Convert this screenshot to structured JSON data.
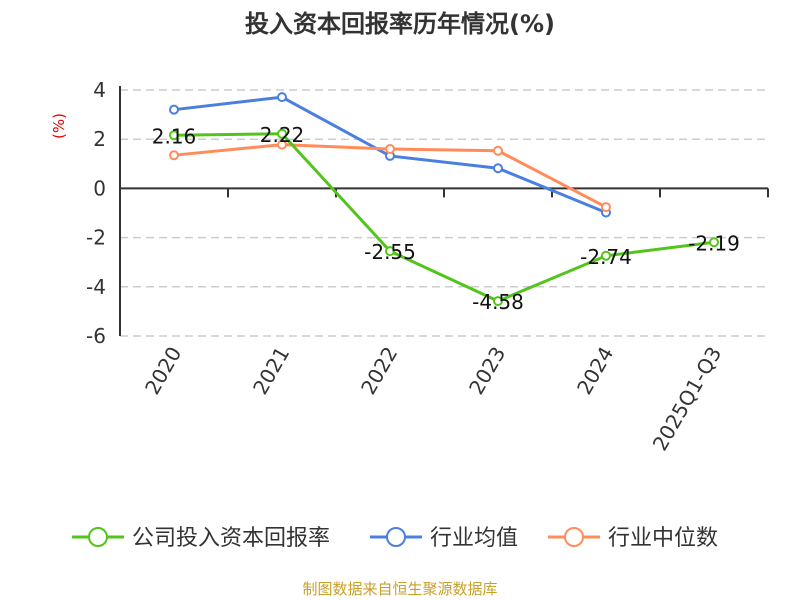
{
  "chart_data": {
    "type": "line",
    "title": "投入资本回报率历年情况(%)",
    "ylabel": "(%)",
    "categories": [
      "2020",
      "2021",
      "2022",
      "2023",
      "2024",
      "2025Q1-Q3"
    ],
    "ylim": [
      -6,
      4
    ],
    "yticks": [
      4,
      2,
      0,
      -2,
      -4,
      -6
    ],
    "grid": true,
    "legend_position": "bottom",
    "series": [
      {
        "name": "公司投入资本回报率",
        "color": "#52c41a",
        "values": [
          2.16,
          2.22,
          -2.55,
          -4.58,
          -2.74,
          -2.19
        ],
        "labels": [
          "2.16",
          "2.22",
          "-2.55",
          "-4.58",
          "-2.74",
          "-2.19"
        ]
      },
      {
        "name": "行业均值",
        "color": "#4a7fe0",
        "values": [
          3.2,
          3.71,
          1.32,
          0.82,
          -0.98,
          null
        ]
      },
      {
        "name": "行业中位数",
        "color": "#ff8c5a",
        "values": [
          1.35,
          1.78,
          1.6,
          1.53,
          -0.76,
          null
        ]
      }
    ]
  },
  "source": "制图数据来自恒生聚源数据库"
}
